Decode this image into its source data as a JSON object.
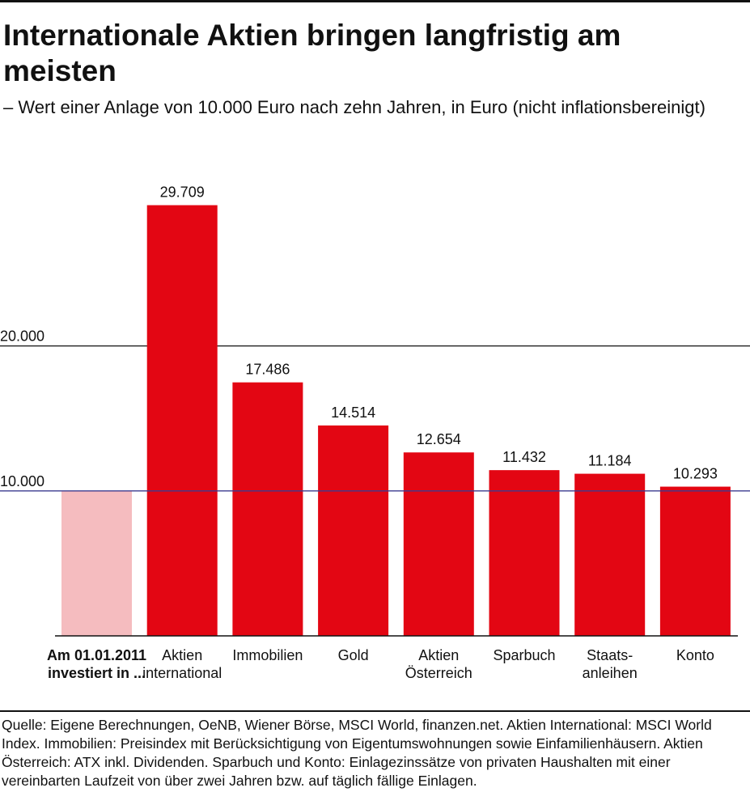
{
  "title": "Internationale Aktien bringen langfristig am meisten",
  "subtitle": "– Wert einer Anlage von 10.000 Euro nach zehn Jahren, in Euro (nicht inflationsbereinigt)",
  "source_note": "Quelle: Eigene Berechnungen, OeNB, Wiener Börse, MSCI World, finanzen.net. Aktien International: MSCI World Index. Immobilien: Preisindex mit Berücksichtigung von Eigentumswohnungen sowie Einfamilienhäusern. Aktien Österreich: ATX inkl. Dividenden. Sparbuch und Konto: Einlagezinssätze von privaten Haushalten mit einer vereinbarten Laufzeit von über zwei Jahren bzw. auf täglich fällige Einlagen.",
  "colors": {
    "bar": "#e30613",
    "baseline_bar": "#f5bcbf",
    "reference_line": "#3b3b8f",
    "text": "#111111"
  },
  "chart_data": {
    "type": "bar",
    "categories": [
      [
        "Am 01.01.2011",
        "investiert in ..."
      ],
      [
        "Aktien",
        "international"
      ],
      [
        "Immobilien"
      ],
      [
        "Gold"
      ],
      [
        "Aktien",
        "Österreich"
      ],
      [
        "Sparbuch"
      ],
      [
        "Staats-",
        "anleihen"
      ],
      [
        "Konto"
      ]
    ],
    "values": [
      10000,
      29709,
      17486,
      14514,
      12654,
      11432,
      11184,
      10293
    ],
    "data_labels": [
      "",
      "29.709",
      "17.486",
      "14.514",
      "12.654",
      "11.432",
      "11.184",
      "10.293"
    ],
    "highlight": "first bar light (initial investment), first category label bold",
    "yticks": [
      10000,
      20000
    ],
    "ytick_labels": [
      "10.000",
      "20.000"
    ],
    "reference_line": 10000,
    "ylim": [
      0,
      30000
    ],
    "grid": true
  }
}
